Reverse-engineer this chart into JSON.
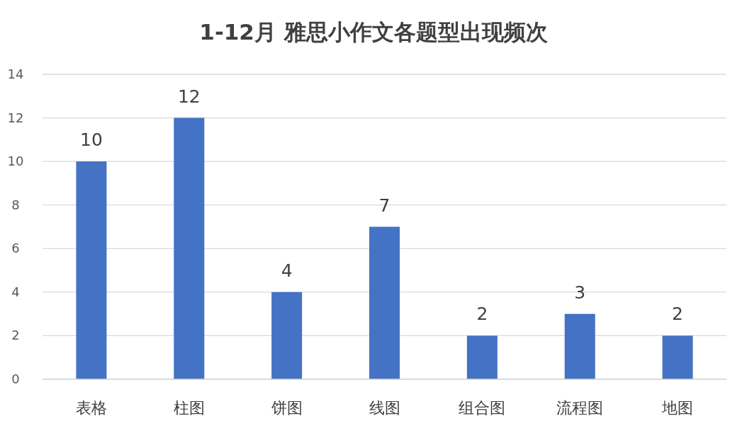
{
  "chart_data": {
    "type": "bar",
    "title": "1-12月 雅思小作文各题型出现频次",
    "categories": [
      "表格",
      "柱图",
      "饼图",
      "线图",
      "组合图",
      "流程图",
      "地图"
    ],
    "values": [
      10,
      12,
      4,
      7,
      2,
      3,
      2
    ],
    "color": "#4472c4",
    "ylim": [
      0,
      14
    ],
    "yticks": [
      0,
      2,
      4,
      6,
      8,
      10,
      12,
      14
    ],
    "grid": "y",
    "data_labels": true
  }
}
